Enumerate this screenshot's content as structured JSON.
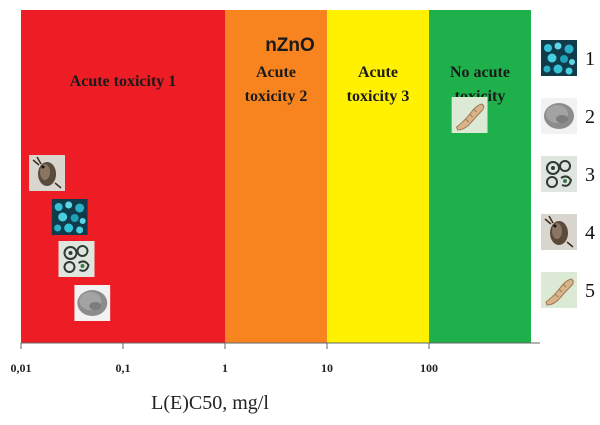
{
  "chart_data": {
    "type": "scatter",
    "title": "nZnO",
    "xlabel": "L(E)C50, mg/l",
    "x_scale": "log",
    "xlim": [
      0.01,
      1000
    ],
    "x_ticks": [
      {
        "value": 0.01,
        "label": "0,01"
      },
      {
        "value": 0.1,
        "label": "0,1"
      },
      {
        "value": 1,
        "label": "1"
      },
      {
        "value": 10,
        "label": "10"
      },
      {
        "value": 100,
        "label": "100"
      }
    ],
    "bands": [
      {
        "from": 0.01,
        "to": 1,
        "label": [
          "Acute toxicity 1"
        ],
        "color": "#ee1c24"
      },
      {
        "from": 1,
        "to": 10,
        "label": [
          "Acute",
          "toxicity 2"
        ],
        "color": "#f7841f"
      },
      {
        "from": 10,
        "to": 100,
        "label": [
          "Acute",
          "toxicity 3"
        ],
        "color": "#fff100"
      },
      {
        "from": 100,
        "to": 1000,
        "label": [
          "No acute",
          "toxicity"
        ],
        "color": "#1eb14b"
      }
    ],
    "points": [
      {
        "organism": "4",
        "x": 0.018,
        "icon": "crustacean-icon"
      },
      {
        "organism": "1",
        "x": 0.03,
        "icon": "algae-cells-icon"
      },
      {
        "organism": "3",
        "x": 0.035,
        "icon": "protozoa-icon"
      },
      {
        "organism": "2",
        "x": 0.05,
        "icon": "cell-icon"
      },
      {
        "organism": "5",
        "x": 250,
        "icon": "larva-icon"
      }
    ],
    "legend": [
      {
        "label": "1",
        "icon": "algae-cells-icon"
      },
      {
        "label": "2",
        "icon": "cell-icon"
      },
      {
        "label": "3",
        "icon": "protozoa-icon"
      },
      {
        "label": "4",
        "icon": "crustacean-icon"
      },
      {
        "label": "5",
        "icon": "larva-icon"
      }
    ],
    "legend_position": "right",
    "grid": false
  }
}
